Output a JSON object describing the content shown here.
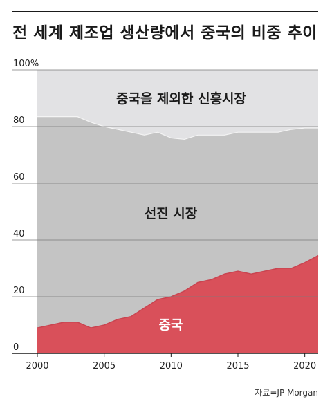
{
  "title": "전 세계 제조업 생산량에서 중국의 비중 추이",
  "source": "자료=JP Morgan",
  "chart_data": {
    "type": "area",
    "stacked": true,
    "title": "전 세계 제조업 생산량에서 중국의 비중 추이",
    "xlim": [
      2000,
      2021
    ],
    "ylim": [
      0,
      100
    ],
    "y_unit": "%",
    "yticks": [
      "0",
      "20",
      "40",
      "60",
      "80",
      "100%"
    ],
    "xticks": [
      "2000",
      "2005",
      "2010",
      "2015",
      "2020"
    ],
    "grid": "horizontal",
    "x": [
      2000,
      2001,
      2002,
      2003,
      2004,
      2005,
      2006,
      2007,
      2008,
      2009,
      2010,
      2011,
      2012,
      2013,
      2014,
      2015,
      2016,
      2017,
      2018,
      2019,
      2020,
      2021
    ],
    "series": [
      {
        "name": "중국",
        "color": "#d9505a",
        "values": [
          9,
          10,
          11,
          11,
          9,
          10,
          12,
          13,
          16,
          19,
          20,
          22,
          25,
          26,
          28,
          29,
          28,
          29,
          30,
          30,
          32,
          34.5
        ]
      },
      {
        "name": "선진 시장",
        "color": "#c4c4c4",
        "values": [
          74.5,
          73.5,
          72.5,
          72.5,
          72.5,
          70,
          67,
          65,
          61,
          59,
          56,
          53.5,
          52,
          51,
          49,
          49,
          50,
          49,
          48,
          49,
          47.5,
          45
        ]
      },
      {
        "name": "중국을 제외한 신흥시장",
        "color": "#e2e2e4",
        "values": [
          16.5,
          16.5,
          16.5,
          16.5,
          18.5,
          20,
          21,
          22,
          23,
          22,
          24,
          24.5,
          23,
          23,
          23,
          22,
          22,
          22,
          22,
          21,
          20.5,
          20.5
        ]
      }
    ]
  }
}
